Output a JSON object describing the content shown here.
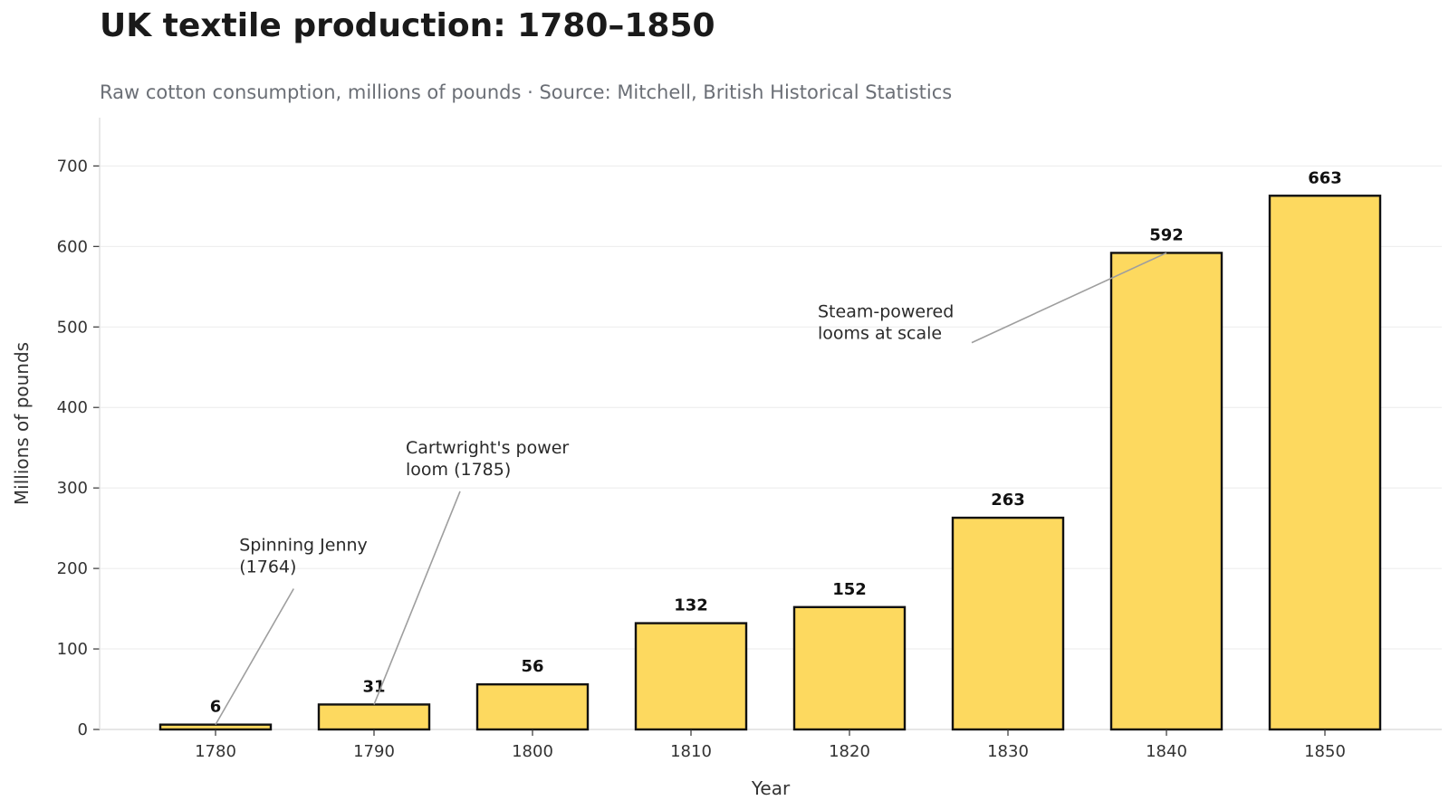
{
  "chart_data": {
    "type": "bar",
    "title": "UK textile production: 1780–1850",
    "subtitle": "Raw cotton consumption, millions of pounds · Source: Mitchell, British Historical Statistics",
    "xlabel": "Year",
    "ylabel": "Millions of pounds",
    "categories": [
      "1780",
      "1790",
      "1800",
      "1810",
      "1820",
      "1830",
      "1840",
      "1850"
    ],
    "values": [
      6,
      31,
      56,
      132,
      152,
      263,
      592,
      663
    ],
    "value_labels": [
      "6",
      "31",
      "56",
      "132",
      "152",
      "263",
      "592",
      "663"
    ],
    "ylim": [
      0,
      760
    ],
    "yticks": [
      "0",
      "100",
      "200",
      "300",
      "400",
      "500",
      "600",
      "700"
    ],
    "grid": "horizontal",
    "legend": "none",
    "bar_color": "#FDD95F",
    "bar_edge_color": "#111111",
    "annotations": [
      {
        "lines": [
          "Spinning Jenny",
          "(1764)"
        ],
        "target_category": "1780",
        "target_value": 6,
        "text_x": "1781.5",
        "text_value": 222
      },
      {
        "lines": [
          "Cartwright's power",
          "loom (1785)"
        ],
        "target_category": "1790",
        "target_value": 31,
        "text_x": "1792",
        "text_value": 343
      },
      {
        "lines": [
          "Steam-powered",
          "looms at scale"
        ],
        "target_category": "1840",
        "target_value": 592,
        "text_x": "1818",
        "text_value": 512
      }
    ]
  }
}
